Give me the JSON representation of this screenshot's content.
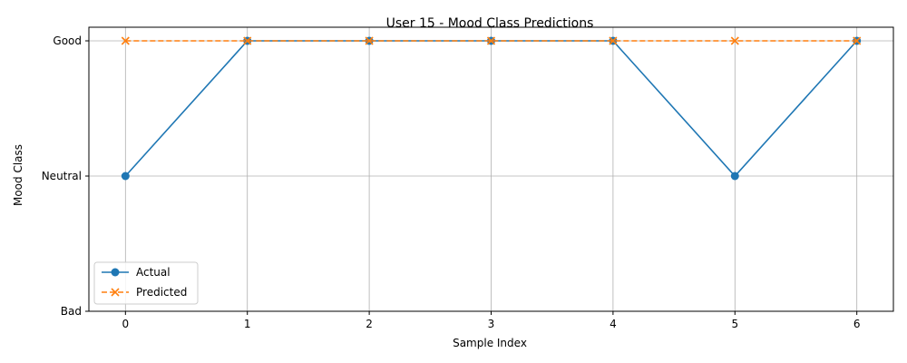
{
  "chart_data": {
    "type": "line",
    "title": "User 15 - Mood Class Predictions",
    "xlabel": "Sample Index",
    "ylabel": "Mood Class",
    "x": [
      0,
      1,
      2,
      3,
      4,
      5,
      6
    ],
    "xlim": [
      -0.3,
      6.3
    ],
    "ylim": [
      0,
      2
    ],
    "y_tick_values": [
      0,
      1,
      2
    ],
    "y_tick_labels": [
      "Bad",
      "Neutral",
      "Good"
    ],
    "grid": true,
    "legend_position": "lower-left",
    "series": [
      {
        "name": "Actual",
        "values": [
          1,
          2,
          2,
          2,
          2,
          1,
          2
        ],
        "color": "#1f77b4",
        "line_style": "solid",
        "marker": "circle"
      },
      {
        "name": "Predicted",
        "values": [
          2,
          2,
          2,
          2,
          2,
          2,
          2
        ],
        "color": "#ff7f0e",
        "line_style": "dashed",
        "marker": "x"
      }
    ]
  }
}
